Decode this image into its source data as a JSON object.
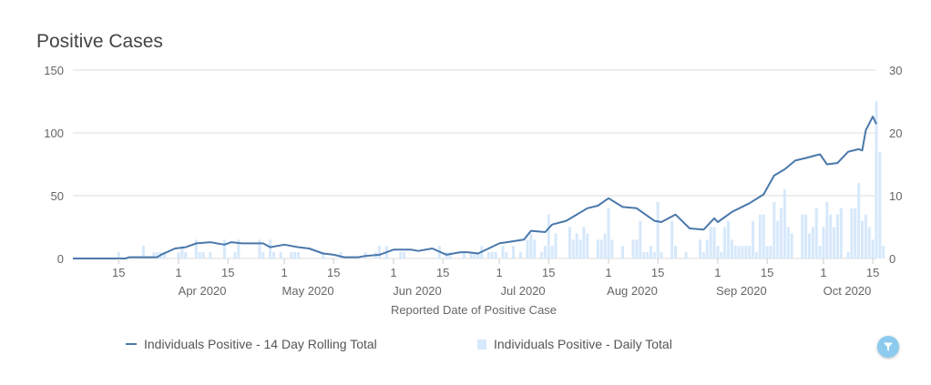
{
  "chart_data": {
    "type": "bar+line",
    "title": "Positive Cases",
    "xlabel": "Reported Date of Positive Case",
    "x_range": [
      "2020-03-02",
      "2020-10-16"
    ],
    "y_left": {
      "range": [
        0,
        150
      ],
      "ticks": [
        "0",
        "50",
        "100",
        "150"
      ]
    },
    "y_right": {
      "range": [
        0,
        30
      ],
      "ticks": [
        "0",
        "10",
        "20",
        "30"
      ]
    },
    "x_ticks": [
      {
        "date": "2020-03-15",
        "label": "15",
        "sub": ""
      },
      {
        "date": "2020-04-01",
        "label": "1",
        "sub": "Apr 2020"
      },
      {
        "date": "2020-04-15",
        "label": "15",
        "sub": ""
      },
      {
        "date": "2020-05-01",
        "label": "1",
        "sub": "May 2020"
      },
      {
        "date": "2020-05-15",
        "label": "15",
        "sub": ""
      },
      {
        "date": "2020-06-01",
        "label": "1",
        "sub": "Jun 2020"
      },
      {
        "date": "2020-06-15",
        "label": "15",
        "sub": ""
      },
      {
        "date": "2020-07-01",
        "label": "1",
        "sub": "Jul 2020"
      },
      {
        "date": "2020-07-15",
        "label": "15",
        "sub": ""
      },
      {
        "date": "2020-08-01",
        "label": "1",
        "sub": "Aug 2020"
      },
      {
        "date": "2020-08-15",
        "label": "15",
        "sub": ""
      },
      {
        "date": "2020-09-01",
        "label": "1",
        "sub": "Sep 2020"
      },
      {
        "date": "2020-09-15",
        "label": "15",
        "sub": ""
      },
      {
        "date": "2020-10-01",
        "label": "1",
        "sub": "Oct 2020"
      },
      {
        "date": "2020-10-15",
        "label": "15",
        "sub": ""
      }
    ],
    "grid": true,
    "legend_position": "bottom",
    "series": [
      {
        "name": "Individuals Positive - 14 Day Rolling Total",
        "type": "line",
        "axis": "left",
        "color": "#4a78aa",
        "points": [
          [
            "2020-03-02",
            0
          ],
          [
            "2020-03-17",
            0
          ],
          [
            "2020-03-18",
            1
          ],
          [
            "2020-03-26",
            1
          ],
          [
            "2020-03-27",
            3
          ],
          [
            "2020-03-31",
            8
          ],
          [
            "2020-04-03",
            9
          ],
          [
            "2020-04-06",
            12
          ],
          [
            "2020-04-10",
            13
          ],
          [
            "2020-04-14",
            11
          ],
          [
            "2020-04-16",
            13
          ],
          [
            "2020-04-19",
            12
          ],
          [
            "2020-04-25",
            12
          ],
          [
            "2020-04-27",
            9
          ],
          [
            "2020-05-01",
            11
          ],
          [
            "2020-05-05",
            9
          ],
          [
            "2020-05-08",
            8
          ],
          [
            "2020-05-12",
            4
          ],
          [
            "2020-05-15",
            3
          ],
          [
            "2020-05-18",
            1
          ],
          [
            "2020-05-22",
            1
          ],
          [
            "2020-05-24",
            2
          ],
          [
            "2020-05-28",
            3
          ],
          [
            "2020-06-01",
            7
          ],
          [
            "2020-06-06",
            7
          ],
          [
            "2020-06-08",
            6
          ],
          [
            "2020-06-12",
            8
          ],
          [
            "2020-06-16",
            3
          ],
          [
            "2020-06-20",
            5
          ],
          [
            "2020-06-22",
            5
          ],
          [
            "2020-06-25",
            4
          ],
          [
            "2020-07-01",
            12
          ],
          [
            "2020-07-08",
            15
          ],
          [
            "2020-07-10",
            22
          ],
          [
            "2020-07-14",
            21
          ],
          [
            "2020-07-16",
            27
          ],
          [
            "2020-07-20",
            30
          ],
          [
            "2020-07-26",
            40
          ],
          [
            "2020-07-29",
            42
          ],
          [
            "2020-08-01",
            48
          ],
          [
            "2020-08-05",
            41
          ],
          [
            "2020-08-09",
            40
          ],
          [
            "2020-08-14",
            30
          ],
          [
            "2020-08-16",
            29
          ],
          [
            "2020-08-20",
            35
          ],
          [
            "2020-08-24",
            24
          ],
          [
            "2020-08-28",
            23
          ],
          [
            "2020-08-31",
            32
          ],
          [
            "2020-09-01",
            29
          ],
          [
            "2020-09-05",
            37
          ],
          [
            "2020-09-10",
            44
          ],
          [
            "2020-09-14",
            51
          ],
          [
            "2020-09-17",
            66
          ],
          [
            "2020-09-20",
            71
          ],
          [
            "2020-09-23",
            78
          ],
          [
            "2020-09-26",
            80
          ],
          [
            "2020-09-30",
            83
          ],
          [
            "2020-10-02",
            75
          ],
          [
            "2020-10-05",
            76
          ],
          [
            "2020-10-08",
            85
          ],
          [
            "2020-10-11",
            87
          ],
          [
            "2020-10-12",
            86
          ],
          [
            "2020-10-13",
            102
          ],
          [
            "2020-10-15",
            113
          ],
          [
            "2020-10-16",
            107
          ]
        ]
      },
      {
        "name": "Individuals Positive - Daily Total",
        "type": "bar",
        "axis": "right",
        "color": "#d6e8fb",
        "points": [
          [
            "2020-03-15",
            1
          ],
          [
            "2020-03-22",
            2
          ],
          [
            "2020-03-25",
            1
          ],
          [
            "2020-03-26",
            1
          ],
          [
            "2020-03-27",
            1
          ],
          [
            "2020-03-28",
            1
          ],
          [
            "2020-04-01",
            1
          ],
          [
            "2020-04-02",
            2
          ],
          [
            "2020-04-03",
            1
          ],
          [
            "2020-04-06",
            3
          ],
          [
            "2020-04-07",
            1
          ],
          [
            "2020-04-08",
            1
          ],
          [
            "2020-04-10",
            1
          ],
          [
            "2020-04-14",
            3
          ],
          [
            "2020-04-17",
            1
          ],
          [
            "2020-04-18",
            3
          ],
          [
            "2020-04-24",
            3
          ],
          [
            "2020-04-25",
            1
          ],
          [
            "2020-04-27",
            3
          ],
          [
            "2020-04-28",
            1
          ],
          [
            "2020-04-30",
            1
          ],
          [
            "2020-05-03",
            1
          ],
          [
            "2020-05-04",
            1
          ],
          [
            "2020-05-05",
            1
          ],
          [
            "2020-05-12",
            1
          ],
          [
            "2020-05-17",
            1
          ],
          [
            "2020-05-24",
            1
          ],
          [
            "2020-05-27",
            1
          ],
          [
            "2020-05-28",
            2
          ],
          [
            "2020-05-30",
            2
          ],
          [
            "2020-06-03",
            1
          ],
          [
            "2020-06-04",
            1
          ],
          [
            "2020-06-14",
            2
          ],
          [
            "2020-06-16",
            1
          ],
          [
            "2020-06-17",
            1
          ],
          [
            "2020-06-21",
            1
          ],
          [
            "2020-06-23",
            1
          ],
          [
            "2020-06-24",
            1
          ],
          [
            "2020-06-25",
            1
          ],
          [
            "2020-06-26",
            2
          ],
          [
            "2020-06-28",
            1
          ],
          [
            "2020-06-29",
            1
          ],
          [
            "2020-06-30",
            1
          ],
          [
            "2020-07-02",
            2
          ],
          [
            "2020-07-03",
            1
          ],
          [
            "2020-07-05",
            2
          ],
          [
            "2020-07-07",
            1
          ],
          [
            "2020-07-09",
            3
          ],
          [
            "2020-07-10",
            4
          ],
          [
            "2020-07-11",
            3
          ],
          [
            "2020-07-13",
            1
          ],
          [
            "2020-07-14",
            2
          ],
          [
            "2020-07-15",
            7
          ],
          [
            "2020-07-16",
            2
          ],
          [
            "2020-07-17",
            4
          ],
          [
            "2020-07-21",
            5
          ],
          [
            "2020-07-22",
            3
          ],
          [
            "2020-07-23",
            4
          ],
          [
            "2020-07-24",
            3
          ],
          [
            "2020-07-25",
            5
          ],
          [
            "2020-07-26",
            4
          ],
          [
            "2020-07-29",
            3
          ],
          [
            "2020-07-30",
            3
          ],
          [
            "2020-07-31",
            4
          ],
          [
            "2020-08-01",
            8
          ],
          [
            "2020-08-02",
            3
          ],
          [
            "2020-08-05",
            2
          ],
          [
            "2020-08-08",
            3
          ],
          [
            "2020-08-09",
            3
          ],
          [
            "2020-08-10",
            6
          ],
          [
            "2020-08-11",
            1
          ],
          [
            "2020-08-12",
            1
          ],
          [
            "2020-08-13",
            2
          ],
          [
            "2020-08-14",
            1
          ],
          [
            "2020-08-15",
            9
          ],
          [
            "2020-08-16",
            1
          ],
          [
            "2020-08-19",
            6
          ],
          [
            "2020-08-20",
            2
          ],
          [
            "2020-08-23",
            1
          ],
          [
            "2020-08-27",
            3
          ],
          [
            "2020-08-28",
            1
          ],
          [
            "2020-08-29",
            3
          ],
          [
            "2020-08-30",
            5
          ],
          [
            "2020-08-31",
            5
          ],
          [
            "2020-09-01",
            2
          ],
          [
            "2020-09-02",
            1
          ],
          [
            "2020-09-03",
            5
          ],
          [
            "2020-09-04",
            6
          ],
          [
            "2020-09-05",
            3
          ],
          [
            "2020-09-06",
            2
          ],
          [
            "2020-09-07",
            2
          ],
          [
            "2020-09-08",
            2
          ],
          [
            "2020-09-09",
            2
          ],
          [
            "2020-09-10",
            2
          ],
          [
            "2020-09-11",
            6
          ],
          [
            "2020-09-12",
            1
          ],
          [
            "2020-09-13",
            7
          ],
          [
            "2020-09-14",
            7
          ],
          [
            "2020-09-15",
            2
          ],
          [
            "2020-09-16",
            2
          ],
          [
            "2020-09-17",
            9
          ],
          [
            "2020-09-18",
            6
          ],
          [
            "2020-09-19",
            8
          ],
          [
            "2020-09-20",
            11
          ],
          [
            "2020-09-21",
            5
          ],
          [
            "2020-09-22",
            4
          ],
          [
            "2020-09-25",
            7
          ],
          [
            "2020-09-26",
            7
          ],
          [
            "2020-09-27",
            4
          ],
          [
            "2020-09-28",
            5
          ],
          [
            "2020-09-29",
            8
          ],
          [
            "2020-09-30",
            2
          ],
          [
            "2020-10-01",
            5
          ],
          [
            "2020-10-02",
            9
          ],
          [
            "2020-10-03",
            7
          ],
          [
            "2020-10-04",
            5
          ],
          [
            "2020-10-05",
            7
          ],
          [
            "2020-10-06",
            8
          ],
          [
            "2020-10-08",
            1
          ],
          [
            "2020-10-09",
            8
          ],
          [
            "2020-10-10",
            8
          ],
          [
            "2020-10-11",
            12
          ],
          [
            "2020-10-12",
            6
          ],
          [
            "2020-10-13",
            7
          ],
          [
            "2020-10-14",
            5
          ],
          [
            "2020-10-15",
            3
          ],
          [
            "2020-10-15",
            25
          ],
          [
            "2020-10-15",
            17
          ],
          [
            "2020-10-16",
            17
          ],
          [
            "2020-10-16",
            6
          ],
          [
            "2020-10-16",
            2
          ]
        ]
      }
    ]
  }
}
